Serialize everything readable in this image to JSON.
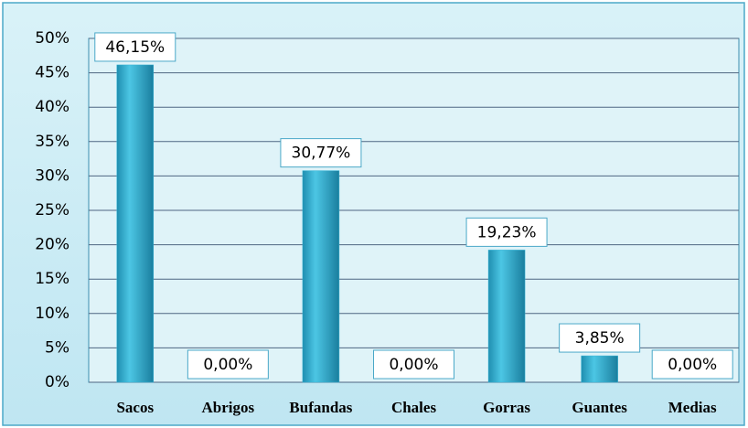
{
  "chart_data": {
    "type": "bar",
    "categories": [
      "Sacos",
      "Abrigos",
      "Bufandas",
      "Chales",
      "Gorras",
      "Guantes",
      "Medias"
    ],
    "values": [
      46.15,
      0,
      30.77,
      0,
      19.23,
      3.85,
      0
    ],
    "value_labels": [
      "46,15%",
      "0,00%",
      "30,77%",
      "0,00%",
      "19,23%",
      "3,85%",
      "0,00%"
    ],
    "color": "#35b4d6",
    "ylim": [
      0,
      50
    ],
    "yticks": [
      {
        "value": 0,
        "label": "0%"
      },
      {
        "value": 5,
        "label": "5%"
      },
      {
        "value": 10,
        "label": "10%"
      },
      {
        "value": 15,
        "label": "15%"
      },
      {
        "value": 20,
        "label": "20%"
      },
      {
        "value": 25,
        "label": "25%"
      },
      {
        "value": 30,
        "label": "30%"
      },
      {
        "value": 35,
        "label": "35%"
      },
      {
        "value": 40,
        "label": "40%"
      },
      {
        "value": 45,
        "label": "45%"
      },
      {
        "value": 50,
        "label": "50%"
      }
    ],
    "grid": true
  }
}
